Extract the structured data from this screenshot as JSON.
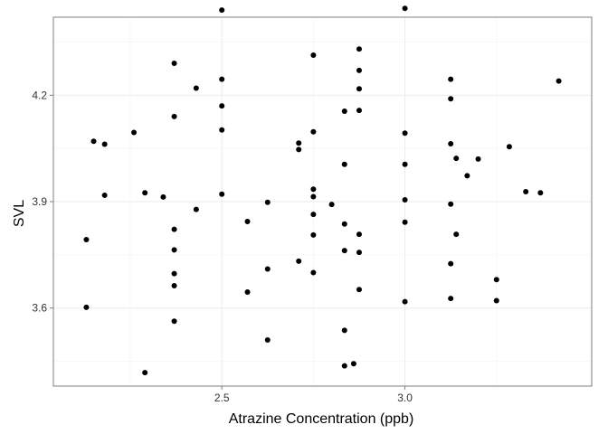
{
  "chart_data": {
    "type": "scatter",
    "title": "",
    "xlabel": "Atrazine Concentration (ppb)",
    "ylabel": "SVL",
    "xlim": [
      2.04,
      3.51
    ],
    "ylim": [
      3.38,
      4.42
    ],
    "x_ticks": [
      2.5,
      3.0
    ],
    "x_tick_labels": [
      "2.5",
      "3.0"
    ],
    "y_ticks": [
      3.6,
      3.9,
      4.2
    ],
    "y_tick_labels": [
      "3.6",
      "3.9",
      "4.2"
    ],
    "grid": true,
    "legend": "none",
    "point_color": "#000000",
    "points": [
      {
        "x": 2.13,
        "y": 3.793
      },
      {
        "x": 2.13,
        "y": 3.602
      },
      {
        "x": 2.15,
        "y": 4.07
      },
      {
        "x": 2.18,
        "y": 4.062
      },
      {
        "x": 2.18,
        "y": 3.918
      },
      {
        "x": 2.26,
        "y": 4.095
      },
      {
        "x": 2.29,
        "y": 3.925
      },
      {
        "x": 2.29,
        "y": 3.418
      },
      {
        "x": 2.34,
        "y": 3.913
      },
      {
        "x": 2.37,
        "y": 4.29
      },
      {
        "x": 2.37,
        "y": 4.14
      },
      {
        "x": 2.37,
        "y": 3.822
      },
      {
        "x": 2.37,
        "y": 3.764
      },
      {
        "x": 2.37,
        "y": 3.697
      },
      {
        "x": 2.37,
        "y": 3.663
      },
      {
        "x": 2.37,
        "y": 3.563
      },
      {
        "x": 2.43,
        "y": 4.22
      },
      {
        "x": 2.43,
        "y": 3.878
      },
      {
        "x": 2.5,
        "y": 4.44
      },
      {
        "x": 2.5,
        "y": 4.245
      },
      {
        "x": 2.5,
        "y": 4.17
      },
      {
        "x": 2.5,
        "y": 4.102
      },
      {
        "x": 2.5,
        "y": 3.921
      },
      {
        "x": 2.57,
        "y": 3.844
      },
      {
        "x": 2.57,
        "y": 3.645
      },
      {
        "x": 2.625,
        "y": 3.898
      },
      {
        "x": 2.625,
        "y": 3.71
      },
      {
        "x": 2.625,
        "y": 3.51
      },
      {
        "x": 2.71,
        "y": 4.065
      },
      {
        "x": 2.71,
        "y": 4.047
      },
      {
        "x": 2.71,
        "y": 3.732
      },
      {
        "x": 2.75,
        "y": 4.313
      },
      {
        "x": 2.75,
        "y": 4.097
      },
      {
        "x": 2.75,
        "y": 3.935
      },
      {
        "x": 2.75,
        "y": 3.914
      },
      {
        "x": 2.75,
        "y": 3.864
      },
      {
        "x": 2.75,
        "y": 3.806
      },
      {
        "x": 2.75,
        "y": 3.7
      },
      {
        "x": 2.8,
        "y": 3.892
      },
      {
        "x": 2.835,
        "y": 4.155
      },
      {
        "x": 2.835,
        "y": 4.005
      },
      {
        "x": 2.835,
        "y": 3.837
      },
      {
        "x": 2.835,
        "y": 3.762
      },
      {
        "x": 2.835,
        "y": 3.537
      },
      {
        "x": 2.835,
        "y": 3.437
      },
      {
        "x": 2.86,
        "y": 3.443
      },
      {
        "x": 2.875,
        "y": 4.33
      },
      {
        "x": 2.875,
        "y": 4.27
      },
      {
        "x": 2.875,
        "y": 4.218
      },
      {
        "x": 2.875,
        "y": 4.157
      },
      {
        "x": 2.875,
        "y": 3.808
      },
      {
        "x": 2.875,
        "y": 3.757
      },
      {
        "x": 2.875,
        "y": 3.652
      },
      {
        "x": 3.0,
        "y": 4.445
      },
      {
        "x": 3.0,
        "y": 4.093
      },
      {
        "x": 3.0,
        "y": 4.005
      },
      {
        "x": 3.0,
        "y": 3.905
      },
      {
        "x": 3.0,
        "y": 3.842
      },
      {
        "x": 3.0,
        "y": 3.618
      },
      {
        "x": 3.125,
        "y": 4.245
      },
      {
        "x": 3.125,
        "y": 4.19
      },
      {
        "x": 3.125,
        "y": 4.063
      },
      {
        "x": 3.125,
        "y": 3.893
      },
      {
        "x": 3.125,
        "y": 3.725
      },
      {
        "x": 3.125,
        "y": 3.627
      },
      {
        "x": 3.14,
        "y": 4.022
      },
      {
        "x": 3.14,
        "y": 3.808
      },
      {
        "x": 3.17,
        "y": 3.973
      },
      {
        "x": 3.2,
        "y": 4.02
      },
      {
        "x": 3.25,
        "y": 3.68
      },
      {
        "x": 3.25,
        "y": 3.621
      },
      {
        "x": 3.285,
        "y": 4.055
      },
      {
        "x": 3.33,
        "y": 3.928
      },
      {
        "x": 3.37,
        "y": 3.925
      },
      {
        "x": 3.42,
        "y": 4.24
      }
    ]
  }
}
